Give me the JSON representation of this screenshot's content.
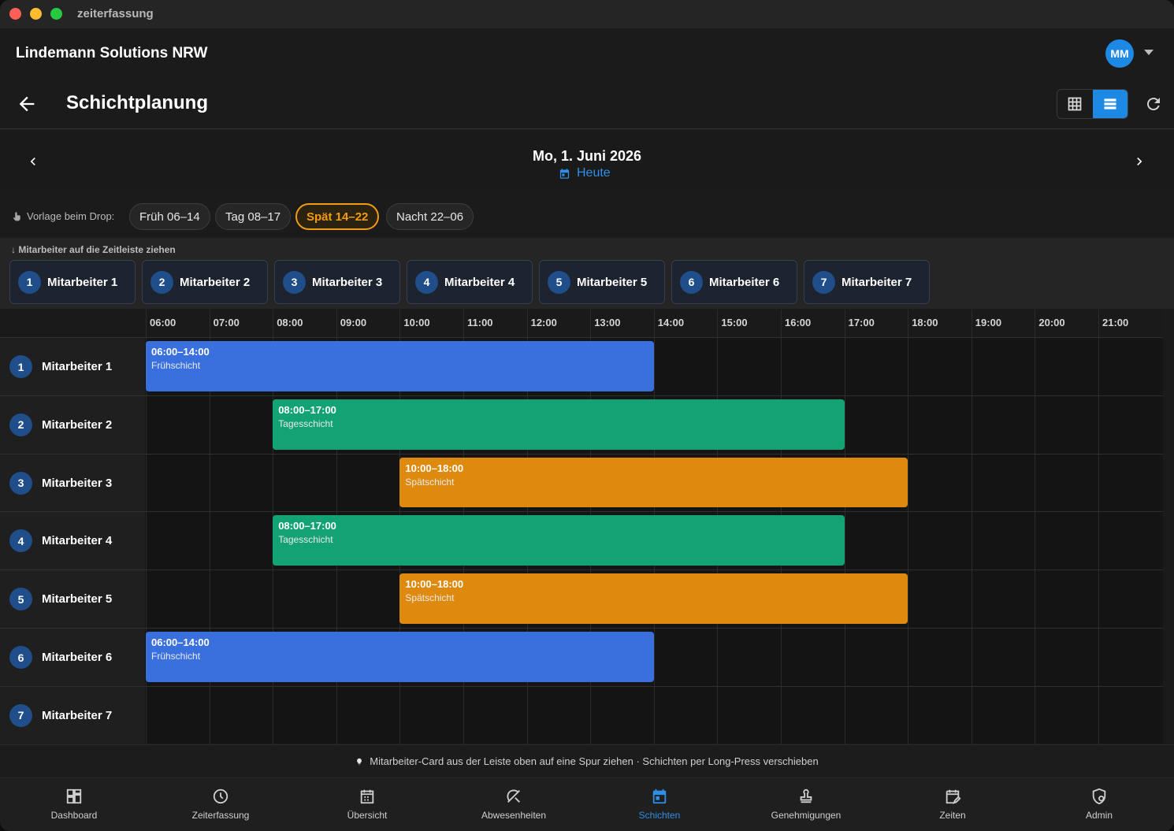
{
  "window": {
    "title": "zeiterfassung"
  },
  "header": {
    "company": "Lindemann Solutions NRW",
    "avatar_initials": "MM"
  },
  "page": {
    "title": "Schichtplanung"
  },
  "date_nav": {
    "date": "Mo, 1. Juni 2026",
    "today_label": "Heute"
  },
  "templates": {
    "label": "Vorlage beim Drop:",
    "chips": [
      {
        "label": "Früh 06–14",
        "active": false
      },
      {
        "label": "Tag 08–17",
        "active": false
      },
      {
        "label": "Spät 14–22",
        "active": true
      },
      {
        "label": "Nacht 22–06",
        "active": false
      }
    ]
  },
  "employee_bar": {
    "hint": "↓ Mitarbeiter auf die Zeitleiste ziehen",
    "employees": [
      {
        "num": "1",
        "name": "Mitarbeiter 1"
      },
      {
        "num": "2",
        "name": "Mitarbeiter 2"
      },
      {
        "num": "3",
        "name": "Mitarbeiter 3"
      },
      {
        "num": "4",
        "name": "Mitarbeiter 4"
      },
      {
        "num": "5",
        "name": "Mitarbeiter 5"
      },
      {
        "num": "6",
        "name": "Mitarbeiter 6"
      },
      {
        "num": "7",
        "name": "Mitarbeiter 7"
      }
    ]
  },
  "timeline": {
    "hours": [
      "06:00",
      "07:00",
      "08:00",
      "09:00",
      "10:00",
      "11:00",
      "12:00",
      "13:00",
      "14:00",
      "15:00",
      "16:00",
      "17:00",
      "18:00",
      "19:00",
      "20:00",
      "21:00"
    ],
    "lanes": [
      {
        "num": "1",
        "name": "Mitarbeiter 1",
        "shift": {
          "time": "06:00–14:00",
          "name": "Frühschicht",
          "start": 6,
          "end": 14,
          "color": "#3a70de"
        }
      },
      {
        "num": "2",
        "name": "Mitarbeiter 2",
        "shift": {
          "time": "08:00–17:00",
          "name": "Tagesschicht",
          "start": 8,
          "end": 17,
          "color": "#12a274"
        }
      },
      {
        "num": "3",
        "name": "Mitarbeiter 3",
        "shift": {
          "time": "10:00–18:00",
          "name": "Spätschicht",
          "start": 10,
          "end": 18,
          "color": "#de8a0f"
        }
      },
      {
        "num": "4",
        "name": "Mitarbeiter 4",
        "shift": {
          "time": "08:00–17:00",
          "name": "Tagesschicht",
          "start": 8,
          "end": 17,
          "color": "#12a274"
        }
      },
      {
        "num": "5",
        "name": "Mitarbeiter 5",
        "shift": {
          "time": "10:00–18:00",
          "name": "Spätschicht",
          "start": 10,
          "end": 18,
          "color": "#de8a0f"
        }
      },
      {
        "num": "6",
        "name": "Mitarbeiter 6",
        "shift": {
          "time": "06:00–14:00",
          "name": "Frühschicht",
          "start": 6,
          "end": 14,
          "color": "#3a70de"
        }
      },
      {
        "num": "7",
        "name": "Mitarbeiter 7",
        "shift": null
      }
    ]
  },
  "footer": {
    "hint": "Mitarbeiter-Card aus der Leiste oben auf eine Spur ziehen · Schichten per Long-Press verschieben"
  },
  "bottom_nav": [
    {
      "label": "Dashboard",
      "icon": "dashboard-icon",
      "active": false
    },
    {
      "label": "Zeiterfassung",
      "icon": "clock-icon",
      "active": false
    },
    {
      "label": "Übersicht",
      "icon": "calendar-grid-icon",
      "active": false
    },
    {
      "label": "Abwesenheiten",
      "icon": "beach-icon",
      "active": false
    },
    {
      "label": "Schichten",
      "icon": "calendar-today-icon",
      "active": true
    },
    {
      "label": "Genehmigungen",
      "icon": "stamp-icon",
      "active": false
    },
    {
      "label": "Zeiten",
      "icon": "calendar-edit-icon",
      "active": false
    },
    {
      "label": "Admin",
      "icon": "admin-shield-icon",
      "active": false
    }
  ],
  "colors": {
    "accent": "#1e88e5",
    "active_chip": "#f29c12"
  }
}
